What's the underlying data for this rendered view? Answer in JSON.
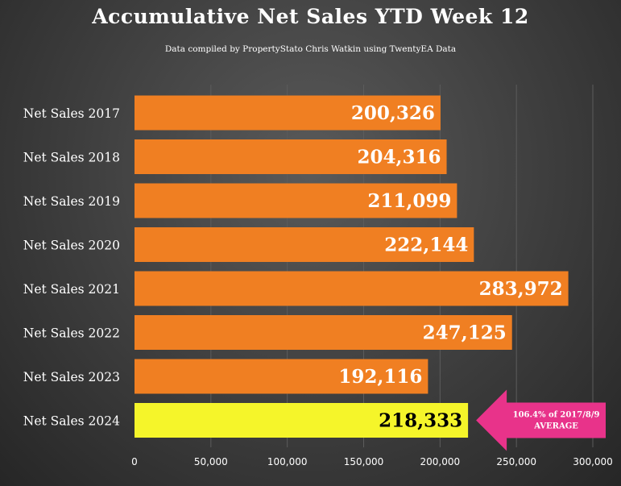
{
  "chart_data": {
    "type": "bar",
    "orientation": "horizontal",
    "title": "Accumulative Net Sales YTD Week 12",
    "subtitle": "Data compiled by PropertyStato Chris Watkin using TwentyEA Data",
    "categories": [
      "Net Sales 2017",
      "Net Sales 2018",
      "Net Sales 2019",
      "Net Sales 2020",
      "Net Sales 2021",
      "Net Sales 2022",
      "Net Sales 2023",
      "Net Sales 2024"
    ],
    "values": [
      200326,
      204316,
      211099,
      222144,
      283972,
      247125,
      192116,
      218333
    ],
    "value_labels": [
      "200,326",
      "204,316",
      "211,099",
      "222,144",
      "283,972",
      "247,125",
      "192,116",
      "218,333"
    ],
    "xlim": [
      0,
      300000
    ],
    "xticks": [
      0,
      50000,
      100000,
      150000,
      200000,
      250000,
      300000
    ],
    "xtick_labels": [
      "0",
      "50,000",
      "100,000",
      "150,000",
      "200,000",
      "250,000",
      "300,000"
    ],
    "grid": true,
    "legend": "none",
    "colors": {
      "bar": "#f07f22",
      "highlight_bar": "#f5f52a",
      "highlight_label": "#000000",
      "label": "#ffffff",
      "callout": "#e8338a"
    },
    "highlight_index": 7,
    "annotation": {
      "line1": "106.4% of 2017/8/9",
      "line2": "AVERAGE"
    }
  }
}
